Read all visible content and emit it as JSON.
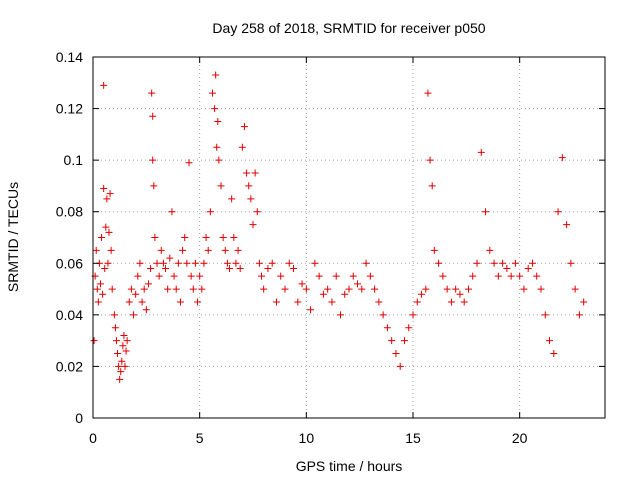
{
  "chart_data": {
    "type": "scatter",
    "title": "Day 258 of 2018, SRMTID for receiver p050",
    "xlabel": "GPS time / hours",
    "ylabel": "SRMTID / TECUs",
    "xlim": [
      0,
      24
    ],
    "ylim": [
      0,
      0.14
    ],
    "xticks": [
      0,
      5,
      10,
      15,
      20
    ],
    "xtick_labels": [
      "0",
      "5",
      "10",
      "15",
      "20"
    ],
    "yticks": [
      0,
      0.02,
      0.04,
      0.06,
      0.08,
      0.1,
      0.12,
      0.14
    ],
    "ytick_labels": [
      "0",
      "0.02",
      "0.04",
      "0.06",
      "0.08",
      "0.1",
      "0.12",
      "0.14"
    ],
    "grid": true,
    "marker": "plus",
    "color": "#e00000",
    "series": [
      {
        "name": "p050",
        "points": [
          [
            0.05,
            0.03
          ],
          [
            0.1,
            0.055
          ],
          [
            0.15,
            0.065
          ],
          [
            0.2,
            0.05
          ],
          [
            0.25,
            0.045
          ],
          [
            0.3,
            0.06
          ],
          [
            0.35,
            0.052
          ],
          [
            0.4,
            0.07
          ],
          [
            0.45,
            0.048
          ],
          [
            0.5,
            0.129
          ],
          [
            0.5,
            0.089
          ],
          [
            0.55,
            0.058
          ],
          [
            0.6,
            0.074
          ],
          [
            0.65,
            0.085
          ],
          [
            0.7,
            0.06
          ],
          [
            0.75,
            0.072
          ],
          [
            0.8,
            0.087
          ],
          [
            0.85,
            0.065
          ],
          [
            0.9,
            0.05
          ],
          [
            1.0,
            0.04
          ],
          [
            1.05,
            0.035
          ],
          [
            1.1,
            0.03
          ],
          [
            1.15,
            0.025
          ],
          [
            1.2,
            0.02
          ],
          [
            1.25,
            0.015
          ],
          [
            1.3,
            0.018
          ],
          [
            1.35,
            0.022
          ],
          [
            1.4,
            0.028
          ],
          [
            1.45,
            0.032
          ],
          [
            1.5,
            0.02
          ],
          [
            1.55,
            0.026
          ],
          [
            1.6,
            0.03
          ],
          [
            1.7,
            0.045
          ],
          [
            1.8,
            0.05
          ],
          [
            1.9,
            0.04
          ],
          [
            2.0,
            0.048
          ],
          [
            2.1,
            0.055
          ],
          [
            2.2,
            0.06
          ],
          [
            2.3,
            0.045
          ],
          [
            2.4,
            0.05
          ],
          [
            2.5,
            0.042
          ],
          [
            2.6,
            0.052
          ],
          [
            2.7,
            0.058
          ],
          [
            2.75,
            0.126
          ],
          [
            2.8,
            0.117
          ],
          [
            2.8,
            0.1
          ],
          [
            2.85,
            0.09
          ],
          [
            2.9,
            0.07
          ],
          [
            3.0,
            0.06
          ],
          [
            3.1,
            0.055
          ],
          [
            3.2,
            0.065
          ],
          [
            3.3,
            0.06
          ],
          [
            3.4,
            0.058
          ],
          [
            3.5,
            0.05
          ],
          [
            3.6,
            0.062
          ],
          [
            3.7,
            0.08
          ],
          [
            3.8,
            0.055
          ],
          [
            3.9,
            0.05
          ],
          [
            4.0,
            0.06
          ],
          [
            4.1,
            0.045
          ],
          [
            4.2,
            0.065
          ],
          [
            4.3,
            0.07
          ],
          [
            4.4,
            0.06
          ],
          [
            4.5,
            0.099
          ],
          [
            4.6,
            0.055
          ],
          [
            4.7,
            0.05
          ],
          [
            4.8,
            0.06
          ],
          [
            4.9,
            0.045
          ],
          [
            5.0,
            0.055
          ],
          [
            5.1,
            0.05
          ],
          [
            5.2,
            0.06
          ],
          [
            5.3,
            0.07
          ],
          [
            5.4,
            0.065
          ],
          [
            5.5,
            0.08
          ],
          [
            5.6,
            0.126
          ],
          [
            5.7,
            0.12
          ],
          [
            5.75,
            0.133
          ],
          [
            5.8,
            0.105
          ],
          [
            5.85,
            0.115
          ],
          [
            5.9,
            0.1
          ],
          [
            6.0,
            0.09
          ],
          [
            6.1,
            0.07
          ],
          [
            6.2,
            0.065
          ],
          [
            6.3,
            0.06
          ],
          [
            6.4,
            0.058
          ],
          [
            6.5,
            0.085
          ],
          [
            6.6,
            0.07
          ],
          [
            6.7,
            0.06
          ],
          [
            6.8,
            0.065
          ],
          [
            6.9,
            0.058
          ],
          [
            7.0,
            0.105
          ],
          [
            7.1,
            0.113
          ],
          [
            7.2,
            0.095
          ],
          [
            7.3,
            0.09
          ],
          [
            7.4,
            0.085
          ],
          [
            7.5,
            0.075
          ],
          [
            7.6,
            0.095
          ],
          [
            7.7,
            0.08
          ],
          [
            7.8,
            0.06
          ],
          [
            7.9,
            0.055
          ],
          [
            8.0,
            0.05
          ],
          [
            8.2,
            0.058
          ],
          [
            8.4,
            0.06
          ],
          [
            8.6,
            0.045
          ],
          [
            8.8,
            0.055
          ],
          [
            9.0,
            0.05
          ],
          [
            9.2,
            0.06
          ],
          [
            9.4,
            0.058
          ],
          [
            9.6,
            0.045
          ],
          [
            9.8,
            0.052
          ],
          [
            10.0,
            0.05
          ],
          [
            10.2,
            0.042
          ],
          [
            10.4,
            0.06
          ],
          [
            10.6,
            0.055
          ],
          [
            10.8,
            0.048
          ],
          [
            11.0,
            0.05
          ],
          [
            11.2,
            0.045
          ],
          [
            11.4,
            0.055
          ],
          [
            11.6,
            0.04
          ],
          [
            11.8,
            0.048
          ],
          [
            12.0,
            0.05
          ],
          [
            12.2,
            0.055
          ],
          [
            12.4,
            0.052
          ],
          [
            12.6,
            0.05
          ],
          [
            12.8,
            0.06
          ],
          [
            13.0,
            0.055
          ],
          [
            13.2,
            0.05
          ],
          [
            13.4,
            0.045
          ],
          [
            13.6,
            0.04
          ],
          [
            13.8,
            0.035
          ],
          [
            14.0,
            0.03
          ],
          [
            14.2,
            0.025
          ],
          [
            14.4,
            0.02
          ],
          [
            14.6,
            0.03
          ],
          [
            14.8,
            0.035
          ],
          [
            15.0,
            0.04
          ],
          [
            15.2,
            0.045
          ],
          [
            15.4,
            0.048
          ],
          [
            15.6,
            0.05
          ],
          [
            15.7,
            0.126
          ],
          [
            15.8,
            0.1
          ],
          [
            15.9,
            0.09
          ],
          [
            16.0,
            0.065
          ],
          [
            16.2,
            0.06
          ],
          [
            16.4,
            0.055
          ],
          [
            16.6,
            0.05
          ],
          [
            16.8,
            0.045
          ],
          [
            17.0,
            0.05
          ],
          [
            17.2,
            0.048
          ],
          [
            17.4,
            0.045
          ],
          [
            17.6,
            0.05
          ],
          [
            17.8,
            0.055
          ],
          [
            18.0,
            0.06
          ],
          [
            18.2,
            0.103
          ],
          [
            18.4,
            0.08
          ],
          [
            18.6,
            0.065
          ],
          [
            18.8,
            0.06
          ],
          [
            19.0,
            0.055
          ],
          [
            19.2,
            0.06
          ],
          [
            19.4,
            0.058
          ],
          [
            19.6,
            0.055
          ],
          [
            19.8,
            0.06
          ],
          [
            20.0,
            0.055
          ],
          [
            20.2,
            0.05
          ],
          [
            20.4,
            0.058
          ],
          [
            20.6,
            0.06
          ],
          [
            20.8,
            0.055
          ],
          [
            21.0,
            0.05
          ],
          [
            21.2,
            0.04
          ],
          [
            21.4,
            0.03
          ],
          [
            21.6,
            0.025
          ],
          [
            21.8,
            0.08
          ],
          [
            22.0,
            0.101
          ],
          [
            22.2,
            0.075
          ],
          [
            22.4,
            0.06
          ],
          [
            22.6,
            0.05
          ],
          [
            22.8,
            0.04
          ],
          [
            23.0,
            0.045
          ]
        ]
      }
    ]
  }
}
